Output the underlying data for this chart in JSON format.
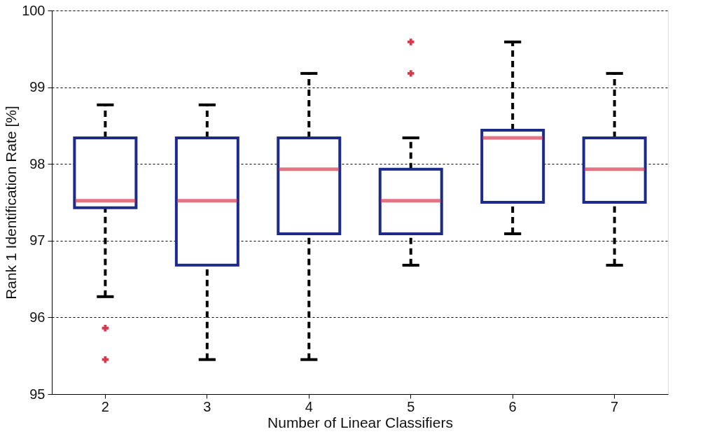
{
  "chart_data": {
    "type": "box",
    "xlabel": "Number of Linear Classifiers",
    "ylabel": "Rank 1 Identification Rate [%]",
    "categories": [
      "2",
      "3",
      "4",
      "5",
      "6",
      "7"
    ],
    "series": [
      {
        "color": "#1c2a8a",
        "boxes": [
          {
            "low": 96.27,
            "q1": 97.43,
            "median": 97.52,
            "q3": 98.34,
            "high": 98.77,
            "outliers": [
              95.86,
              95.45
            ]
          },
          {
            "low": 95.45,
            "q1": 96.68,
            "median": 97.52,
            "q3": 98.34,
            "high": 98.77
          },
          {
            "low": 95.45,
            "q1": 97.09,
            "median": 97.93,
            "q3": 98.34,
            "high": 99.18
          },
          {
            "low": 96.68,
            "q1": 97.09,
            "median": 97.52,
            "q3": 97.93,
            "high": 98.34,
            "outliers": [
              99.59,
              99.18
            ]
          },
          {
            "low": 97.09,
            "q1": 97.5,
            "median": 98.34,
            "q3": 98.44,
            "high": 99.59
          },
          {
            "low": 96.68,
            "q1": 97.5,
            "median": 97.93,
            "q3": 98.34,
            "high": 99.18
          }
        ]
      }
    ],
    "ylim": [
      95,
      100
    ],
    "yticks": [
      {
        "value": 95,
        "label": "95"
      },
      {
        "value": 96,
        "label": "96"
      },
      {
        "value": 97,
        "label": "97"
      },
      {
        "value": 98,
        "label": "98"
      },
      {
        "value": 99,
        "label": "99"
      },
      {
        "value": 100,
        "label": "100"
      }
    ],
    "grid": "y",
    "marker": "cross"
  }
}
